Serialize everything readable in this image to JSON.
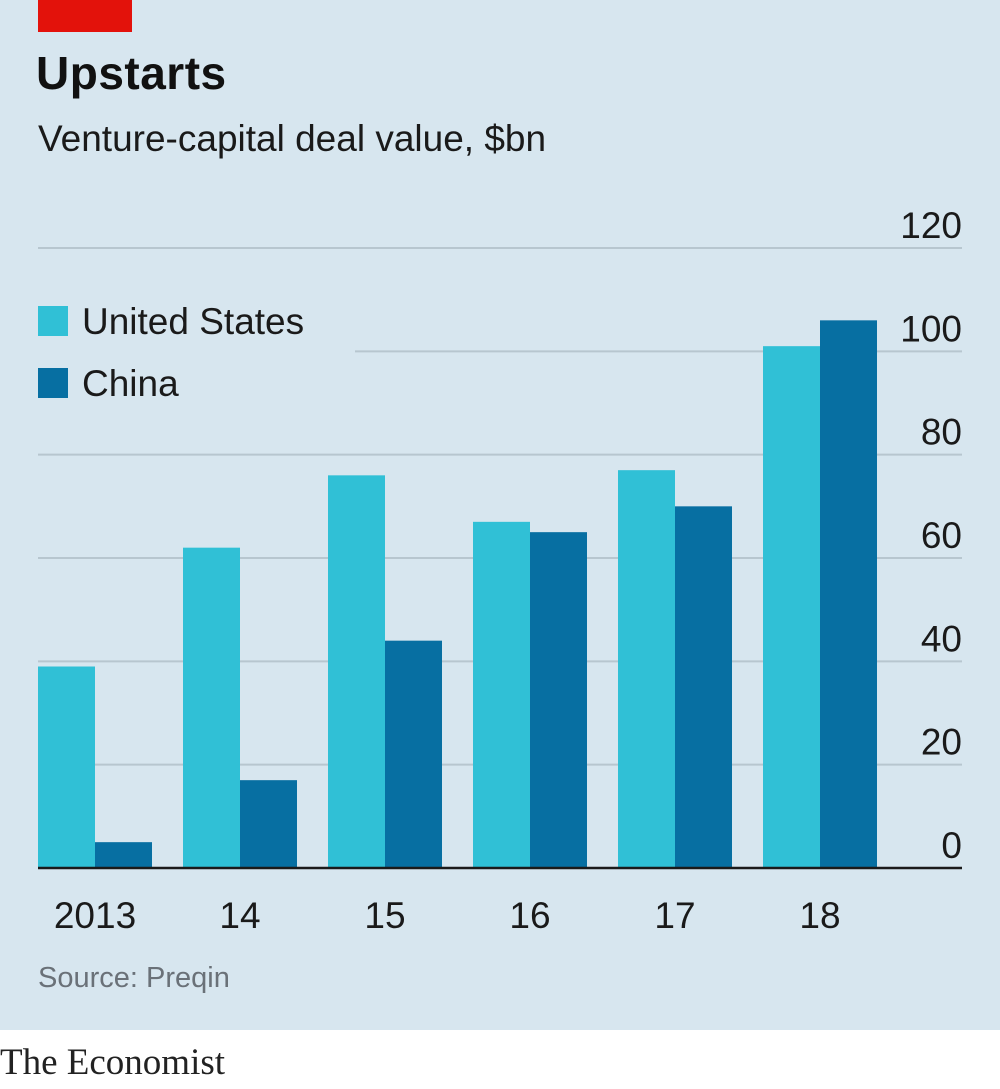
{
  "header": {
    "title": "Upstarts",
    "subtitle": "Venture-capital deal value, $bn"
  },
  "footer": {
    "source": "Source: Preqin",
    "brand": "The Economist"
  },
  "colors": {
    "background": "#d7e6ef",
    "accent_tab": "#e3120b",
    "united_states": "#30c0d6",
    "china": "#076fa2",
    "gridline": "#b7c6cf",
    "axis": "#1a1a1a"
  },
  "chart_data": {
    "type": "bar",
    "title": "Upstarts",
    "subtitle": "Venture-capital deal value, $bn",
    "categories": [
      "2013",
      "14",
      "15",
      "16",
      "17",
      "18"
    ],
    "series": [
      {
        "name": "United States",
        "values": [
          39,
          62,
          76,
          67,
          77,
          101
        ]
      },
      {
        "name": "China",
        "values": [
          5,
          17,
          44,
          65,
          70,
          106
        ]
      }
    ],
    "ylim": [
      0,
      120
    ],
    "yticks": [
      0,
      20,
      40,
      60,
      80,
      100,
      120
    ],
    "y_axis_side": "right",
    "grid": true,
    "legend_position": "top-left",
    "source": "Source: Preqin"
  }
}
